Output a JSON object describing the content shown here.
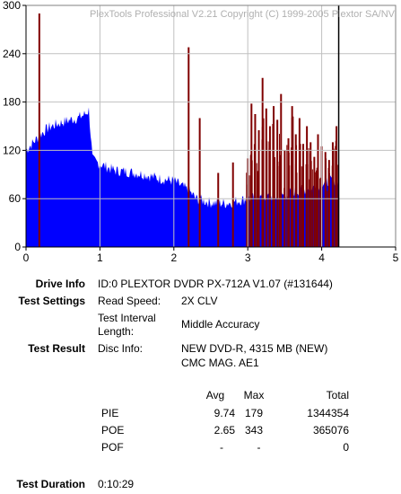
{
  "chart_data": {
    "type": "bar",
    "title": "PlexTools Professional V2.21 Copyright (C) 1999-2005 Plextor SA/NV",
    "xlabel": "",
    "ylabel": "",
    "xlim": [
      0,
      5
    ],
    "ylim": [
      0,
      300
    ],
    "x_ticks": [
      "0",
      "1",
      "2",
      "3",
      "4",
      "5"
    ],
    "y_ticks": [
      "0",
      "60",
      "120",
      "180",
      "240",
      "300"
    ],
    "grid": true,
    "end_marker_x": 4.23,
    "series": [
      {
        "color": "#0000ff",
        "x": [
          0,
          0.05,
          0.1,
          0.2,
          0.3,
          0.4,
          0.5,
          0.6,
          0.7,
          0.8,
          0.85,
          0.9,
          1.0,
          1.2,
          1.4,
          1.6,
          1.8,
          2.0,
          2.2,
          2.3,
          2.5,
          2.7,
          2.9,
          3.0,
          3.2,
          3.4,
          3.6,
          3.8,
          4.0,
          4.1,
          4.2,
          4.23
        ],
        "values": [
          120,
          125,
          130,
          140,
          148,
          152,
          155,
          158,
          160,
          165,
          170,
          108,
          103,
          95,
          93,
          90,
          85,
          82,
          70,
          60,
          55,
          54,
          58,
          60,
          62,
          63,
          68,
          72,
          78,
          82,
          83,
          83
        ]
      },
      {
        "color": "#800000",
        "x": [
          0.18,
          2.2,
          2.35,
          2.6,
          2.8,
          3.0,
          3.05,
          3.1,
          3.15,
          3.2,
          3.25,
          3.3,
          3.35,
          3.4,
          3.45,
          3.5,
          3.55,
          3.6,
          3.65,
          3.7,
          3.75,
          3.8,
          3.85,
          3.9,
          3.95,
          4.0,
          4.05,
          4.1,
          4.15,
          4.2
        ],
        "values": [
          290,
          248,
          160,
          92,
          105,
          110,
          178,
          165,
          145,
          210,
          172,
          150,
          175,
          158,
          190,
          120,
          135,
          175,
          140,
          160,
          128,
          150,
          130,
          112,
          140,
          125,
          118,
          108,
          130,
          150
        ]
      }
    ]
  },
  "info": {
    "drive_info_label": "Drive Info",
    "drive_info_value": "ID:0 PLEXTOR DVDR PX-712A V1.07 (#131644)",
    "test_settings_label": "Test Settings",
    "read_speed_label": "Read Speed:",
    "read_speed_value": "2X CLV",
    "interval_label_line1": "Test Interval",
    "interval_label_line2": "Length:",
    "interval_value": "Middle Accuracy",
    "test_result_label": "Test Result",
    "disc_info_label": "Disc Info:",
    "disc_info_line1": "NEW DVD-R, 4315 MB (NEW)",
    "disc_info_line2": "CMC MAG. AE1",
    "test_duration_label": "Test Duration",
    "test_duration_value": "0:10:29"
  },
  "results": {
    "headers": [
      "Avg",
      "Max",
      "Total"
    ],
    "rows": [
      {
        "name": "PIE",
        "avg": "9.74",
        "max": "179",
        "total": "1344354"
      },
      {
        "name": "POE",
        "avg": "2.65",
        "max": "343",
        "total": "365076"
      },
      {
        "name": "POF",
        "avg": "-",
        "max": "-",
        "total": "0"
      }
    ]
  }
}
